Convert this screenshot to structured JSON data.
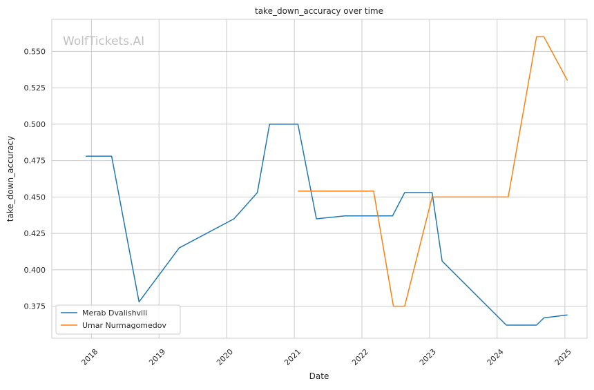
{
  "chart_data": {
    "type": "line",
    "title": "take_down_accuracy over time",
    "xlabel": "Date",
    "ylabel": "take_down_accuracy",
    "watermark": "WolfTickets.AI",
    "x_ticks": [
      "2018",
      "2019",
      "2020",
      "2021",
      "2022",
      "2023",
      "2024",
      "2025"
    ],
    "y_ticks": [
      "0.375",
      "0.400",
      "0.425",
      "0.450",
      "0.475",
      "0.500",
      "0.525",
      "0.550"
    ],
    "xlim": [
      "2017-06-01",
      "2025-05-01"
    ],
    "ylim": [
      0.353,
      0.572
    ],
    "grid": true,
    "legend_position": "bottom-left",
    "series": [
      {
        "name": "Merab Dvalishvili",
        "color": "#1f77b4",
        "points": [
          [
            "2017-12-01",
            0.478
          ],
          [
            "2018-04-20",
            0.478
          ],
          [
            "2018-09-15",
            0.378
          ],
          [
            "2019-04-20",
            0.415
          ],
          [
            "2020-02-10",
            0.435
          ],
          [
            "2020-06-15",
            0.453
          ],
          [
            "2020-08-20",
            0.5
          ],
          [
            "2021-01-20",
            0.5
          ],
          [
            "2021-04-30",
            0.435
          ],
          [
            "2021-10-01",
            0.437
          ],
          [
            "2022-06-15",
            0.437
          ],
          [
            "2022-08-20",
            0.453
          ],
          [
            "2023-01-15",
            0.453
          ],
          [
            "2023-03-10",
            0.406
          ],
          [
            "2024-02-20",
            0.362
          ],
          [
            "2024-08-01",
            0.362
          ],
          [
            "2024-09-10",
            0.367
          ],
          [
            "2025-01-15",
            0.369
          ]
        ]
      },
      {
        "name": "Umar Nurmagomedov",
        "color": "#ff7f0e",
        "points": [
          [
            "2021-01-20",
            0.454
          ],
          [
            "2022-03-05",
            0.454
          ],
          [
            "2022-06-20",
            0.375
          ],
          [
            "2022-08-20",
            0.375
          ],
          [
            "2023-01-15",
            0.45
          ],
          [
            "2024-03-01",
            0.45
          ],
          [
            "2024-08-01",
            0.56
          ],
          [
            "2024-09-10",
            0.56
          ],
          [
            "2025-01-15",
            0.53
          ]
        ]
      }
    ]
  }
}
